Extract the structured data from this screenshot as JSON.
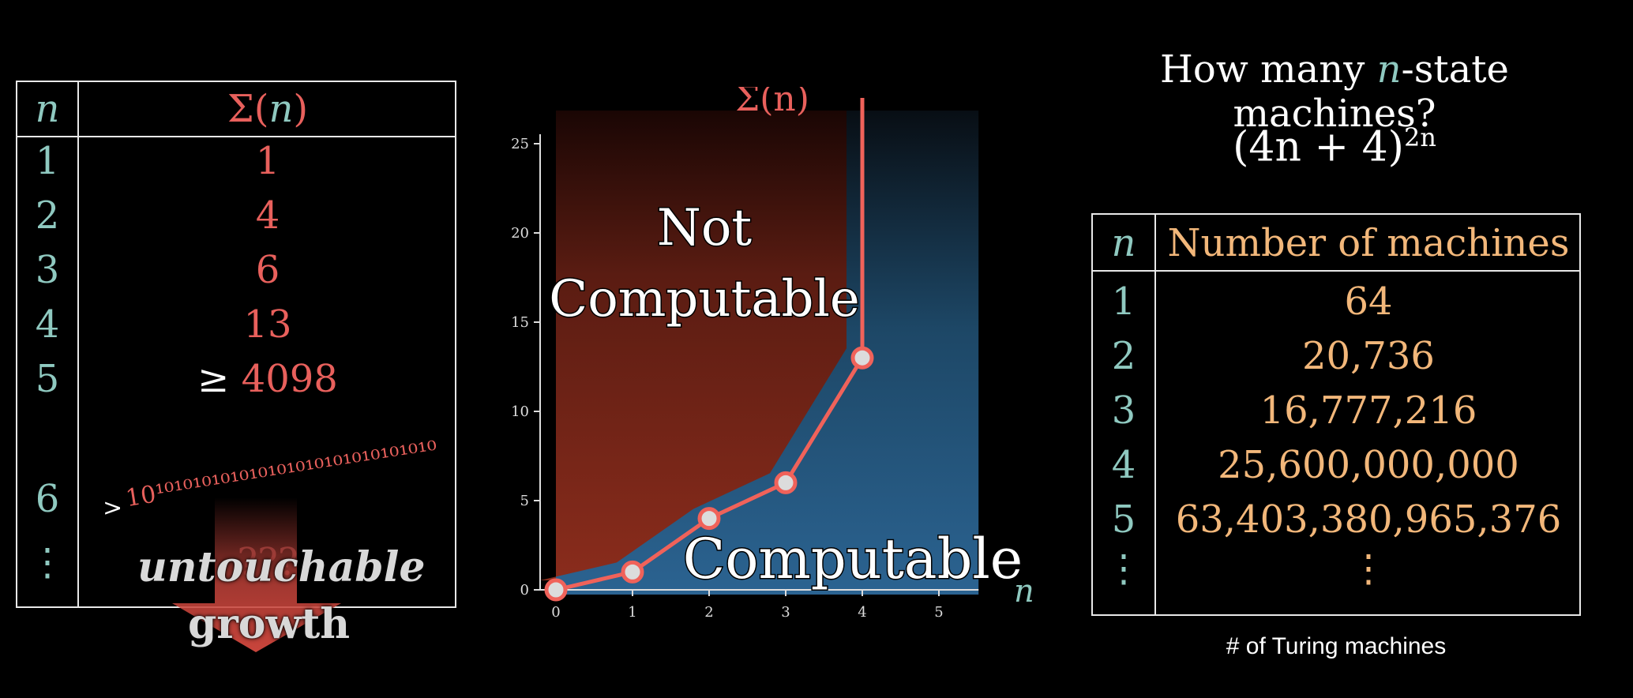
{
  "left_table": {
    "header_n": "n",
    "header_sigma": "Σ(",
    "header_sigma_n": "n",
    "header_sigma_close": ")",
    "rows": [
      {
        "n": "1",
        "value": "1"
      },
      {
        "n": "2",
        "value": "4"
      },
      {
        "n": "3",
        "value": "6"
      },
      {
        "n": "4",
        "value": "13"
      },
      {
        "n": "5",
        "prefix": "≥",
        "value": "4098"
      },
      {
        "n": "6",
        "prefix": ">",
        "value": "10¹⁰¹⁰¹⁰¹⁰¹⁰¹⁰¹⁰¹⁰¹⁰¹⁰¹⁰¹⁰¹⁰¹⁰¹⁰"
      },
      {
        "n": "⋮",
        "value": "???"
      }
    ]
  },
  "overlay": {
    "word1": "untouchable",
    "word2": "growth"
  },
  "chart_data": {
    "type": "line",
    "title": "Σ(n)",
    "xlabel": "n",
    "ylabel": "",
    "x": [
      0,
      1,
      2,
      3,
      4
    ],
    "y": [
      0,
      1,
      4,
      6,
      13
    ],
    "xlim": [
      0,
      5.6
    ],
    "ylim": [
      0,
      25
    ],
    "xticks": [
      "0",
      "1",
      "2",
      "3",
      "4",
      "5"
    ],
    "yticks": [
      "0",
      "5",
      "10",
      "15",
      "20",
      "25"
    ],
    "regions": {
      "above": "Not Computable",
      "above_line1": "Not",
      "above_line2": "Computable",
      "below": "Computable"
    },
    "colors": {
      "line": "#f0625a",
      "above_region": "#7a2418",
      "below_region": "#2a5f86",
      "point_fill": "#dcdcdc"
    }
  },
  "right": {
    "title_prefix": "How many ",
    "title_var": "n",
    "title_suffix": "-state machines?",
    "formula": "(4n + 4)",
    "formula_exp": "2n",
    "table": {
      "header_n": "n",
      "header_value": "Number of machines",
      "rows": [
        {
          "n": "1",
          "value": "64"
        },
        {
          "n": "2",
          "value": "20,736"
        },
        {
          "n": "3",
          "value": "16,777,216"
        },
        {
          "n": "4",
          "value": "25,600,000,000"
        },
        {
          "n": "5",
          "value": "63,403,380,965,376"
        },
        {
          "n": "⋮",
          "value": "⋮"
        }
      ]
    },
    "caption": "# of Turing machines"
  }
}
